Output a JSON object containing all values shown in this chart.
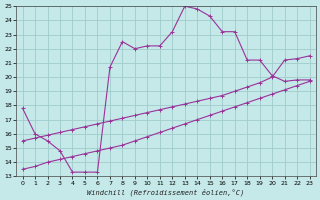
{
  "xlabel": "Windchill (Refroidissement éolien,°C)",
  "bg_color": "#c5e8e8",
  "grid_color": "#a0cccc",
  "line_color": "#993399",
  "xlim": [
    -0.5,
    23.5
  ],
  "ylim": [
    13,
    25
  ],
  "xticks": [
    0,
    1,
    2,
    3,
    4,
    5,
    6,
    7,
    8,
    9,
    10,
    11,
    12,
    13,
    14,
    15,
    16,
    17,
    18,
    19,
    20,
    21,
    22,
    23
  ],
  "yticks": [
    13,
    14,
    15,
    16,
    17,
    18,
    19,
    20,
    21,
    22,
    23,
    24,
    25
  ],
  "series1_x": [
    0,
    1,
    2,
    3,
    4,
    5,
    6,
    7,
    8,
    9,
    10,
    11,
    12,
    13,
    14,
    15,
    16,
    17,
    18,
    19,
    20,
    21,
    22,
    23
  ],
  "series1_y": [
    17.8,
    16.0,
    15.5,
    14.8,
    13.3,
    13.3,
    13.3,
    20.7,
    22.5,
    22.0,
    22.2,
    22.2,
    23.2,
    25.0,
    24.8,
    24.3,
    23.2,
    23.2,
    21.2,
    21.2,
    20.1,
    19.7,
    19.8,
    19.8
  ],
  "series2_x": [
    0,
    1,
    2,
    3,
    4,
    5,
    6,
    7,
    8,
    9,
    10,
    11,
    12,
    13,
    14,
    15,
    16,
    17,
    18,
    19,
    20,
    21,
    22,
    23
  ],
  "series2_y": [
    15.5,
    15.7,
    15.9,
    16.1,
    16.3,
    16.5,
    16.7,
    16.9,
    17.1,
    17.3,
    17.5,
    17.7,
    17.9,
    18.1,
    18.3,
    18.5,
    18.7,
    19.0,
    19.3,
    19.6,
    20.0,
    21.2,
    21.3,
    21.5
  ],
  "series3_x": [
    0,
    1,
    2,
    3,
    4,
    5,
    6,
    7,
    8,
    9,
    10,
    11,
    12,
    13,
    14,
    15,
    16,
    17,
    18,
    19,
    20,
    21,
    22,
    23
  ],
  "series3_y": [
    13.5,
    13.7,
    14.0,
    14.2,
    14.4,
    14.6,
    14.8,
    15.0,
    15.2,
    15.5,
    15.8,
    16.1,
    16.4,
    16.7,
    17.0,
    17.3,
    17.6,
    17.9,
    18.2,
    18.5,
    18.8,
    19.1,
    19.4,
    19.7
  ]
}
